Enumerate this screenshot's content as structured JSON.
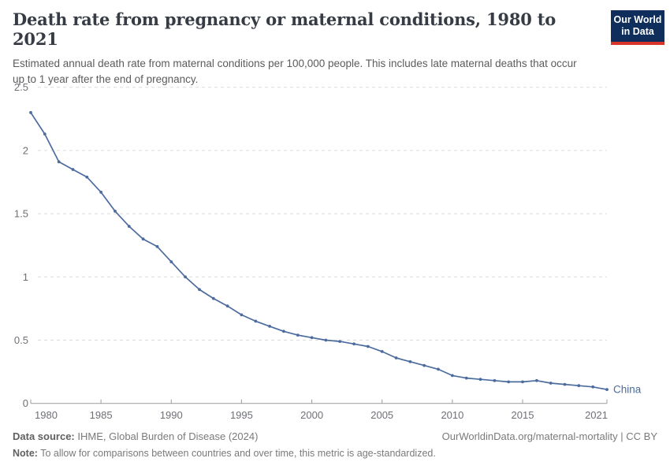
{
  "header": {
    "title": "Death rate from pregnancy or maternal conditions, 1980 to 2021",
    "subtitle": "Estimated annual death rate from maternal conditions per 100,000 people. This includes late maternal deaths that occur up to 1 year after the end of pregnancy.",
    "logo": {
      "line1": "Our World",
      "line2": "in Data",
      "bg_color": "#0f2e5c",
      "stripe_color": "#d8352a"
    }
  },
  "chart_data": {
    "type": "line",
    "title": "Death rate from pregnancy or maternal conditions, 1980 to 2021",
    "xlabel": "",
    "ylabel": "",
    "xlim": [
      1980,
      2021
    ],
    "ylim": [
      0,
      2.5
    ],
    "grid": "horizontal-dashed",
    "markers": true,
    "legend_position": "end-of-line",
    "x_ticks": [
      1980,
      1985,
      1990,
      1995,
      2000,
      2005,
      2010,
      2015,
      2021
    ],
    "x_tick_labels": [
      "1980",
      "1985",
      "1990",
      "1995",
      "2000",
      "2005",
      "2010",
      "2015",
      "2021"
    ],
    "y_ticks": [
      0,
      0.5,
      1,
      1.5,
      2,
      2.5
    ],
    "y_tick_labels": [
      "0",
      "0.5",
      "1",
      "1.5",
      "2",
      "2.5"
    ],
    "x": [
      1980,
      1981,
      1982,
      1983,
      1984,
      1985,
      1986,
      1987,
      1988,
      1989,
      1990,
      1991,
      1992,
      1993,
      1994,
      1995,
      1996,
      1997,
      1998,
      1999,
      2000,
      2001,
      2002,
      2003,
      2004,
      2005,
      2006,
      2007,
      2008,
      2009,
      2010,
      2011,
      2012,
      2013,
      2014,
      2015,
      2016,
      2017,
      2018,
      2019,
      2020,
      2021
    ],
    "series": [
      {
        "name": "China",
        "color": "#4c6b9e",
        "values": [
          2.3,
          2.13,
          1.91,
          1.85,
          1.79,
          1.67,
          1.52,
          1.4,
          1.3,
          1.24,
          1.12,
          1.0,
          0.9,
          0.83,
          0.77,
          0.7,
          0.65,
          0.61,
          0.57,
          0.54,
          0.52,
          0.5,
          0.49,
          0.47,
          0.45,
          0.41,
          0.36,
          0.33,
          0.3,
          0.27,
          0.22,
          0.2,
          0.19,
          0.18,
          0.17,
          0.17,
          0.18,
          0.16,
          0.15,
          0.14,
          0.13,
          0.11
        ]
      }
    ],
    "colors": {
      "gridline": "#dcdcdc",
      "axis": "#9b9b9b",
      "tick_label": "#6e7077"
    }
  },
  "footer": {
    "source_label": "Data source:",
    "source_value": " IHME, Global Burden of Disease (2024)",
    "citation": "OurWorldinData.org/maternal-mortality | CC BY",
    "note_label": "Note:",
    "note_value": " To allow for comparisons between countries and over time, this metric is age-standardized."
  }
}
